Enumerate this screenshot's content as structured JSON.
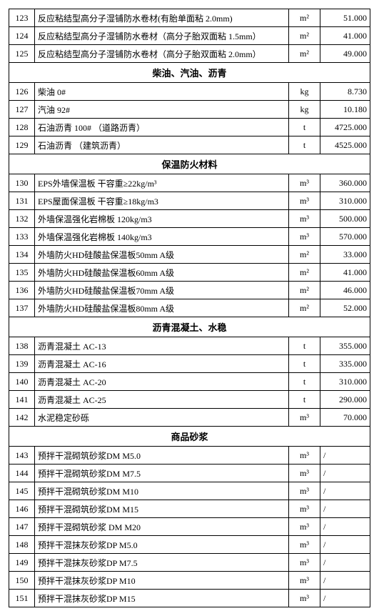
{
  "columns": [
    "idx",
    "name",
    "unit",
    "price"
  ],
  "sections": [
    {
      "header": null,
      "rows": [
        {
          "idx": "123",
          "name": "反应粘结型高分子湿铺防水卷材(有胎单面粘 2.0mm)",
          "unit": "m²",
          "price": "51.000"
        },
        {
          "idx": "124",
          "name": "反应粘结型高分子湿铺防水卷材（高分子胎双面粘 1.5mm）",
          "unit": "m²",
          "price": "41.000"
        },
        {
          "idx": "125",
          "name": "反应粘结型高分子湿铺防水卷材（高分子胎双面粘 2.0mm）",
          "unit": "m²",
          "price": "49.000"
        }
      ]
    },
    {
      "header": "柴油、汽油、沥青",
      "rows": [
        {
          "idx": "126",
          "name": "柴油 0#",
          "unit": "kg",
          "price": "8.730"
        },
        {
          "idx": "127",
          "name": "汽油 92#",
          "unit": "kg",
          "price": "10.180"
        },
        {
          "idx": "128",
          "name": "石油沥青 100#   （道路沥青）",
          "unit": "t",
          "price": "4725.000"
        },
        {
          "idx": "129",
          "name": "石油沥青    （建筑沥青）",
          "unit": "t",
          "price": "4525.000"
        }
      ]
    },
    {
      "header": "保温防火材料",
      "rows": [
        {
          "idx": "130",
          "name": "EPS外墙保温板 干容重≥22kg/m³",
          "unit": "m³",
          "price": "360.000"
        },
        {
          "idx": "131",
          "name": "EPS屋面保温板 干容重≥18kg/m3",
          "unit": "m³",
          "price": "310.000"
        },
        {
          "idx": "132",
          "name": "外墙保温强化岩棉板  120kg/m3",
          "unit": "m³",
          "price": "500.000"
        },
        {
          "idx": "133",
          "name": "外墙保温强化岩棉板  140kg/m3",
          "unit": "m³",
          "price": "570.000"
        },
        {
          "idx": "134",
          "name": "外墙防火HD硅酸盐保温板50mm  A级",
          "unit": "m²",
          "price": "33.000"
        },
        {
          "idx": "135",
          "name": "外墙防火HD硅酸盐保温板60mm  A级",
          "unit": "m²",
          "price": "41.000"
        },
        {
          "idx": "136",
          "name": "外墙防火HD硅酸盐保温板70mm  A级",
          "unit": "m²",
          "price": "46.000"
        },
        {
          "idx": "137",
          "name": "外墙防火HD硅酸盐保温板80mm  A级",
          "unit": "m²",
          "price": "52.000"
        }
      ]
    },
    {
      "header": "沥青混凝土、水稳",
      "rows": [
        {
          "idx": "138",
          "name": "沥青混凝土  AC-13",
          "unit": "t",
          "price": "355.000"
        },
        {
          "idx": "139",
          "name": "沥青混凝土  AC-16",
          "unit": "t",
          "price": "335.000"
        },
        {
          "idx": "140",
          "name": "沥青混凝土  AC-20",
          "unit": "t",
          "price": "310.000"
        },
        {
          "idx": "141",
          "name": "沥青混凝土  AC-25",
          "unit": "t",
          "price": "290.000"
        },
        {
          "idx": "142",
          "name": "水泥稳定砂砾",
          "unit": "m³",
          "price": "70.000"
        }
      ]
    },
    {
      "header": "商品砂浆",
      "rows": [
        {
          "idx": "143",
          "name": "预拌干混砌筑砂浆DM M5.0",
          "unit": "m³",
          "price": "/"
        },
        {
          "idx": "144",
          "name": "预拌干混砌筑砂浆DM M7.5",
          "unit": "m³",
          "price": "/"
        },
        {
          "idx": "145",
          "name": "预拌干混砌筑砂浆DM M10",
          "unit": "m³",
          "price": "/"
        },
        {
          "idx": "146",
          "name": "预拌干混砌筑砂浆DM M15",
          "unit": "m³",
          "price": "/"
        },
        {
          "idx": "147",
          "name": "预拌干混砌筑砂浆 DM M20",
          "unit": "m³",
          "price": "/"
        },
        {
          "idx": "148",
          "name": "预拌干混抹灰砂浆DP M5.0",
          "unit": "m³",
          "price": "/"
        },
        {
          "idx": "149",
          "name": "预拌干混抹灰砂浆DP M7.5",
          "unit": "m³",
          "price": "/"
        },
        {
          "idx": "150",
          "name": "预拌干混抹灰砂浆DP M10",
          "unit": "m³",
          "price": "/"
        },
        {
          "idx": "151",
          "name": "预拌干混抹灰砂浆DP M15",
          "unit": "m³",
          "price": "/"
        }
      ]
    }
  ]
}
